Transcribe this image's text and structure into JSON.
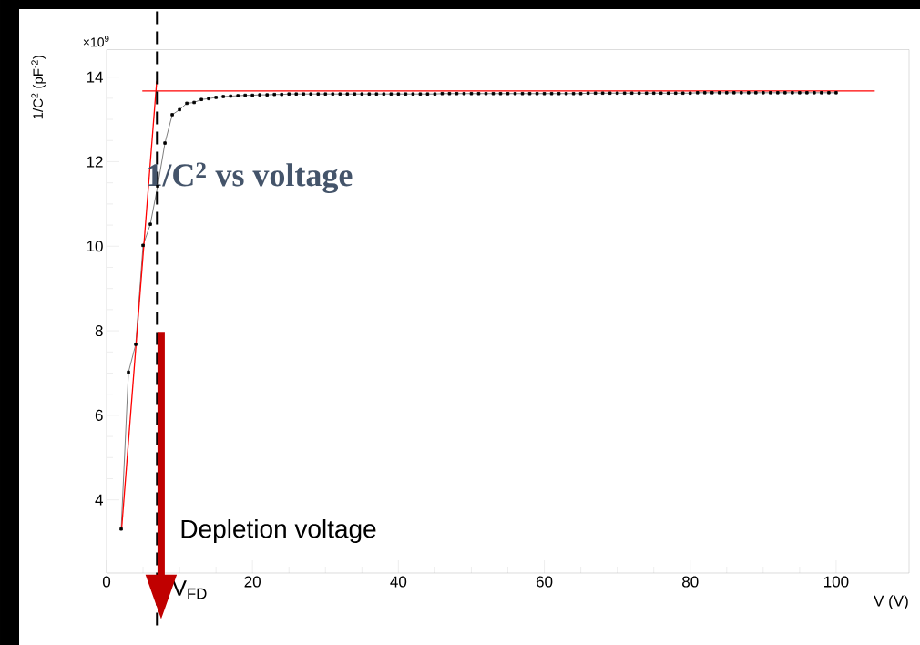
{
  "chart_data": {
    "type": "line",
    "title": "1/C$^{2}$ vs voltage",
    "xlabel": "V (V)",
    "ylabel": "1/C$^{2}$ (pF$^{-2}$)",
    "annotations": [
      "×10$^{9}$",
      "Depletion voltage"
    ],
    "xlim": [
      0,
      110
    ],
    "ylim": [
      2.27,
      14.65
    ],
    "xticks": [
      0,
      20,
      40,
      60,
      80,
      100
    ],
    "yticks": [
      4,
      6,
      8,
      10,
      12,
      14
    ],
    "marker": "square",
    "series": [
      {
        "color": "#707070",
        "x": [
          2,
          3,
          4,
          5,
          6,
          7,
          8,
          9,
          10,
          11,
          12,
          13,
          14,
          15,
          16,
          17,
          18,
          19,
          20,
          21,
          22,
          23,
          24,
          25,
          26,
          27,
          28,
          29,
          30,
          31,
          32,
          33,
          34,
          35,
          36,
          37,
          38,
          39,
          40,
          41,
          42,
          43,
          44,
          45,
          46,
          47,
          48,
          49,
          50,
          51,
          52,
          53,
          54,
          55,
          56,
          57,
          58,
          59,
          60,
          61,
          62,
          63,
          64,
          65,
          66,
          67,
          68,
          69,
          70,
          71,
          72,
          73,
          74,
          75,
          76,
          77,
          78,
          79,
          80,
          81,
          82,
          83,
          84,
          85,
          86,
          87,
          88,
          89,
          90,
          91,
          92,
          93,
          94,
          95,
          96,
          97,
          98,
          99,
          100
        ],
        "values": [
          3.31,
          7.02,
          7.68,
          10.02,
          10.52,
          11.42,
          12.44,
          13.11,
          13.23,
          13.38,
          13.4,
          13.47,
          13.49,
          13.52,
          13.54,
          13.55,
          13.56,
          13.57,
          13.57,
          13.58,
          13.58,
          13.59,
          13.59,
          13.6,
          13.6,
          13.6,
          13.6,
          13.6,
          13.6,
          13.6,
          13.6,
          13.6,
          13.6,
          13.6,
          13.6,
          13.6,
          13.6,
          13.6,
          13.6,
          13.6,
          13.6,
          13.6,
          13.6,
          13.6,
          13.61,
          13.61,
          13.61,
          13.61,
          13.61,
          13.61,
          13.61,
          13.61,
          13.61,
          13.61,
          13.61,
          13.61,
          13.61,
          13.61,
          13.61,
          13.61,
          13.61,
          13.61,
          13.61,
          13.61,
          13.62,
          13.62,
          13.62,
          13.62,
          13.62,
          13.62,
          13.62,
          13.62,
          13.62,
          13.62,
          13.62,
          13.62,
          13.62,
          13.62,
          13.62,
          13.63,
          13.63,
          13.63,
          13.63,
          13.63,
          13.63,
          13.63,
          13.63,
          13.63,
          13.63,
          13.63,
          13.63,
          13.63,
          13.63,
          13.63,
          13.63,
          13.63,
          13.63,
          13.63,
          13.63
        ]
      },
      {
        "color": "#ff0000",
        "marker": "none",
        "x": [
          2.06,
          6.87
        ],
        "values": [
          3.31,
          13.9
        ]
      },
      {
        "color": "#ff0000",
        "marker": "none",
        "x": [
          4.9,
          105.3
        ],
        "values": [
          13.67,
          13.67
        ]
      }
    ],
    "ref_lines": [
      {
        "axis": "x",
        "value": 6.96,
        "label": "V$_{FD}$",
        "color": "#000000",
        "line_style": "dashed"
      }
    ]
  }
}
